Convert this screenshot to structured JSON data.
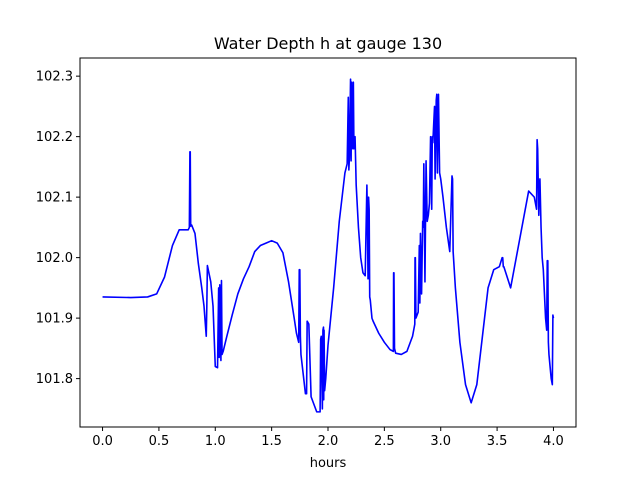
{
  "chart_data": {
    "type": "line",
    "title": "Water Depth h at gauge 130",
    "xlabel": "hours",
    "ylabel": "",
    "xlim": [
      -0.2,
      4.2
    ],
    "ylim": [
      101.72,
      102.33
    ],
    "grid": false,
    "x_ticks": [
      0.0,
      0.5,
      1.0,
      1.5,
      2.0,
      2.5,
      3.0,
      3.5,
      4.0
    ],
    "x_tick_labels": [
      "0.0",
      "0.5",
      "1.0",
      "1.5",
      "2.0",
      "2.5",
      "3.0",
      "3.5",
      "4.0"
    ],
    "y_ticks": [
      101.8,
      101.9,
      102.0,
      102.1,
      102.2,
      102.3
    ],
    "y_tick_labels": [
      "101.8",
      "101.9",
      "102.0",
      "102.1",
      "102.2",
      "102.3"
    ],
    "series": [
      {
        "color": "#0000ff",
        "x": [
          0.0,
          0.25,
          0.4,
          0.48,
          0.55,
          0.62,
          0.68,
          0.72,
          0.76,
          0.77,
          0.775,
          0.778,
          0.782,
          0.79,
          0.82,
          0.85,
          0.88,
          0.9,
          0.92,
          0.925,
          0.93,
          0.96,
          0.98,
          1.0,
          1.02,
          1.03,
          1.035,
          1.04,
          1.05,
          1.055,
          1.06,
          1.07,
          1.1,
          1.15,
          1.2,
          1.25,
          1.3,
          1.35,
          1.4,
          1.45,
          1.5,
          1.55,
          1.6,
          1.65,
          1.7,
          1.72,
          1.74,
          1.745,
          1.75,
          1.755,
          1.76,
          1.8,
          1.81,
          1.815,
          1.83,
          1.85,
          1.9,
          1.93,
          1.935,
          1.94,
          1.95,
          1.955,
          1.96,
          1.962,
          1.965,
          1.97,
          1.975,
          1.98,
          2.0,
          2.05,
          2.1,
          2.15,
          2.17,
          2.18,
          2.185,
          2.19,
          2.2,
          2.205,
          2.21,
          2.22,
          2.225,
          2.23,
          2.24,
          2.245,
          2.25,
          2.27,
          2.29,
          2.31,
          2.33,
          2.345,
          2.35,
          2.355,
          2.36,
          2.365,
          2.37,
          2.375,
          2.38,
          2.385,
          2.39,
          2.4,
          2.45,
          2.5,
          2.55,
          2.58,
          2.582,
          2.585,
          2.59,
          2.6,
          2.65,
          2.7,
          2.75,
          2.77,
          2.772,
          2.775,
          2.78,
          2.8,
          2.81,
          2.815,
          2.82,
          2.83,
          2.84,
          2.845,
          2.85,
          2.86,
          2.87,
          2.88,
          2.89,
          2.9,
          2.91,
          2.92,
          2.925,
          2.93,
          2.94,
          2.945,
          2.95,
          2.96,
          2.965,
          2.97,
          2.98,
          2.99,
          3.0,
          3.02,
          3.05,
          3.08,
          3.1,
          3.105,
          3.11,
          3.13,
          3.17,
          3.22,
          3.27,
          3.32,
          3.37,
          3.42,
          3.47,
          3.52,
          3.545,
          3.55,
          3.555,
          3.56,
          3.62,
          3.7,
          3.78,
          3.83,
          3.85,
          3.855,
          3.86,
          3.87,
          3.875,
          3.88,
          3.89,
          3.9,
          3.91,
          3.92,
          3.93,
          3.94,
          3.945,
          3.95,
          3.955,
          3.96,
          3.97,
          3.98,
          3.99,
          3.995,
          4.0
        ],
        "y": [
          101.935,
          101.934,
          101.935,
          101.94,
          101.968,
          102.02,
          102.046,
          102.046,
          102.046,
          102.05,
          102.175,
          102.175,
          102.052,
          102.054,
          102.04,
          101.99,
          101.95,
          101.92,
          101.87,
          101.92,
          101.987,
          101.96,
          101.92,
          101.82,
          101.818,
          101.95,
          101.835,
          101.955,
          101.83,
          101.962,
          101.84,
          101.845,
          101.868,
          101.905,
          101.94,
          101.965,
          101.985,
          102.01,
          102.02,
          102.024,
          102.028,
          102.024,
          102.008,
          101.96,
          101.9,
          101.875,
          101.86,
          101.98,
          101.98,
          101.87,
          101.84,
          101.775,
          101.775,
          101.895,
          101.89,
          101.77,
          101.745,
          101.745,
          101.865,
          101.87,
          101.75,
          101.88,
          101.885,
          101.765,
          101.88,
          101.78,
          101.79,
          101.8,
          101.855,
          101.95,
          102.06,
          102.14,
          102.155,
          102.265,
          102.145,
          102.165,
          102.295,
          102.16,
          102.29,
          102.18,
          102.29,
          102.18,
          102.2,
          102.16,
          102.12,
          102.05,
          102.0,
          101.975,
          101.97,
          102.12,
          102.06,
          101.965,
          102.1,
          102.08,
          101.935,
          101.93,
          101.92,
          101.91,
          101.9,
          101.895,
          101.875,
          101.86,
          101.848,
          101.845,
          101.975,
          101.975,
          101.85,
          101.842,
          101.84,
          101.845,
          101.87,
          101.89,
          102.0,
          102.0,
          101.9,
          101.91,
          102.02,
          101.925,
          102.04,
          101.94,
          102.06,
          102.05,
          102.155,
          101.96,
          102.16,
          102.06,
          102.07,
          102.09,
          102.2,
          102.08,
          102.2,
          102.19,
          102.23,
          102.25,
          102.13,
          102.26,
          102.27,
          102.14,
          102.27,
          102.14,
          102.13,
          102.1,
          102.05,
          102.01,
          102.135,
          102.13,
          102.01,
          101.95,
          101.86,
          101.79,
          101.76,
          101.79,
          101.87,
          101.95,
          101.98,
          101.985,
          102.0,
          102.0,
          101.985,
          101.985,
          101.95,
          102.03,
          102.11,
          102.1,
          102.08,
          102.195,
          102.18,
          102.07,
          102.12,
          102.13,
          102.05,
          102.0,
          101.98,
          101.94,
          101.9,
          101.88,
          101.995,
          101.995,
          101.86,
          101.84,
          101.82,
          101.8,
          101.79,
          101.905,
          101.9
        ]
      }
    ]
  }
}
